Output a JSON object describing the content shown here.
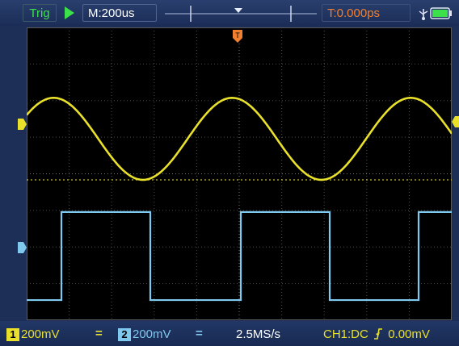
{
  "topbar": {
    "trig_label": "Trig",
    "run_state": "play-icon",
    "timebase": "M:200us",
    "trigger_time": "T:0.000ps",
    "usb_icon": "usb-icon",
    "battery_icon": "battery-icon"
  },
  "bottombar": {
    "ch1_number": "1",
    "ch1_volts": "200mV",
    "ch1_coupling_symbol": "=",
    "ch2_number": "2",
    "ch2_volts": "200mV",
    "ch2_coupling_symbol": "=",
    "sample_rate": "2.5MS/s",
    "trigger_channel": "CH1:DC",
    "trigger_edge_icon": "rising-edge-icon",
    "trigger_level": "0.00mV"
  },
  "colors": {
    "ch1": "#e8e02a",
    "ch2": "#7fc8ee",
    "trigger": "#f08030",
    "bar_bg": "#1d2f57"
  }
}
